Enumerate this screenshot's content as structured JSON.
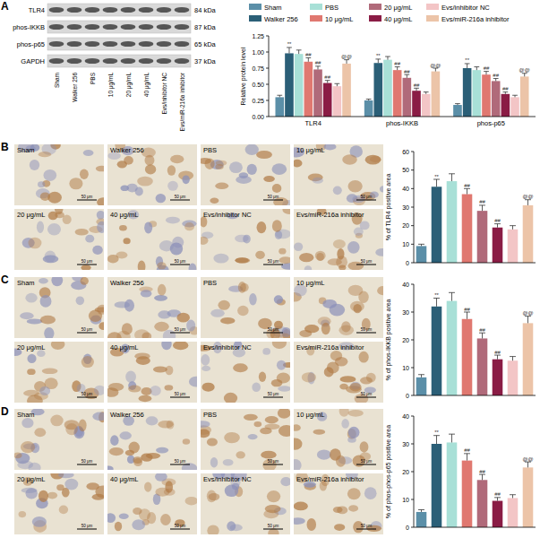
{
  "panel_labels": [
    "A",
    "B",
    "C",
    "D"
  ],
  "blot": {
    "proteins": [
      {
        "name": "TLR4",
        "size": "84 kDa"
      },
      {
        "name": "phos-IKKB",
        "size": "87 kDa"
      },
      {
        "name": "phos-p65",
        "size": "65 kDa"
      },
      {
        "name": "GAPDH",
        "size": "37 kDa"
      }
    ],
    "lanes": [
      "Sham",
      "Walker 256",
      "PBS",
      "10 μg/mL",
      "20 μg/mL",
      "40 μg/mL",
      "Evs/inhibitor NC",
      "Evs/miR-216a inhibitor"
    ]
  },
  "micrographs": {
    "labels": [
      "Sham",
      "Walker 256",
      "PBS",
      "10 μg/mL",
      "20 μg/mL",
      "40 μg/mL",
      "Evs/inhibitor NC",
      "Evs/miR-216a inhibitor"
    ],
    "scale_bar": "50 μm"
  },
  "chart_data": [
    {
      "type": "bar",
      "y_label": "Relative protein level",
      "categories": [
        "TLR4",
        "phos-IKKB",
        "phos-p65"
      ],
      "ylim": [
        0,
        1.25
      ],
      "yticks": [
        {
          "value": 0,
          "label": "0.00"
        },
        0.25,
        {
          "value": 0.5,
          "label": "0.50"
        },
        0.75,
        {
          "value": 1,
          "label": "1.00"
        },
        1.25
      ],
      "legend": "top",
      "grid": false,
      "series": [
        {
          "name": "Sham",
          "color": "#5b8fa8",
          "values": [
            0.3,
            0.25,
            0.18
          ],
          "errors": [
            0.03,
            0.02,
            0.02
          ],
          "annotations": [
            null,
            null,
            null
          ]
        },
        {
          "name": "Walker 256",
          "color": "#2b5f77",
          "values": [
            0.98,
            0.83,
            0.75
          ],
          "errors": [
            0.09,
            0.06,
            0.07
          ],
          "annotations": [
            "**",
            "**",
            "**"
          ]
        },
        {
          "name": "PBS",
          "color": "#a8e0d7",
          "values": [
            0.97,
            0.88,
            0.72
          ],
          "errors": [
            0.06,
            0.05,
            0.05
          ],
          "annotations": [
            null,
            null,
            null
          ]
        },
        {
          "name": "10 μg/mL",
          "color": "#e07870",
          "values": [
            0.85,
            0.72,
            0.65
          ],
          "errors": [
            0.06,
            0.05,
            0.05
          ],
          "annotations": [
            "##",
            "##",
            "##"
          ]
        },
        {
          "name": "20 μg/mL",
          "color": "#b06a7a",
          "values": [
            0.73,
            0.6,
            0.55
          ],
          "errors": [
            0.05,
            0.05,
            0.04
          ],
          "annotations": [
            "##",
            "##",
            "##"
          ]
        },
        {
          "name": "40 μg/mL",
          "color": "#8a1c45",
          "values": [
            0.52,
            0.4,
            0.35
          ],
          "errors": [
            0.04,
            0.04,
            0.03
          ],
          "annotations": [
            "##",
            "##",
            "##"
          ]
        },
        {
          "name": "Evs/inhibitor NC",
          "color": "#f3c5c6",
          "values": [
            0.47,
            0.35,
            0.3
          ],
          "errors": [
            0.04,
            0.03,
            0.03
          ],
          "annotations": [
            null,
            null,
            null
          ]
        },
        {
          "name": "Evs/miR-216a inhibitor",
          "color": "#ecc4a8",
          "values": [
            0.82,
            0.7,
            0.62
          ],
          "errors": [
            0.06,
            0.05,
            0.05
          ],
          "annotations": [
            "@@",
            "@@",
            "@@"
          ]
        }
      ]
    },
    {
      "type": "bar",
      "y_label": "% of TLR4 positive area",
      "categories": [
        null,
        null,
        null,
        null,
        null,
        null,
        null,
        null
      ],
      "values": [
        9,
        41,
        44,
        37,
        28,
        19,
        18,
        31
      ],
      "errors": [
        1,
        4,
        4,
        3,
        3,
        2,
        2,
        3
      ],
      "annotations": [
        null,
        "**",
        null,
        "##",
        "##",
        "##",
        null,
        "@@"
      ],
      "colors": [
        "#5b8fa8",
        "#2b5f77",
        "#a8e0d7",
        "#e07870",
        "#b06a7a",
        "#8a1c45",
        "#f3c5c6",
        "#ecc4a8"
      ],
      "ylim": [
        0,
        60
      ],
      "yticks": [
        0,
        10,
        20,
        30,
        40,
        50,
        60
      ],
      "tick_labels": "y",
      "grid": false
    },
    {
      "type": "bar",
      "y_label": "% of phos-IKKB positive area",
      "categories": [
        null,
        null,
        null,
        null,
        null,
        null,
        null,
        null
      ],
      "values": [
        6.5,
        32,
        34,
        27.5,
        20.5,
        13,
        12.5,
        26
      ],
      "errors": [
        1,
        3,
        3,
        2.5,
        2,
        1.5,
        1.5,
        2.5
      ],
      "annotations": [
        null,
        "**",
        null,
        "##",
        "##",
        "##",
        null,
        "@@"
      ],
      "colors": [
        "#5b8fa8",
        "#2b5f77",
        "#a8e0d7",
        "#e07870",
        "#b06a7a",
        "#8a1c45",
        "#f3c5c6",
        "#ecc4a8"
      ],
      "ylim": [
        0,
        40
      ],
      "yticks": [
        0,
        10,
        20,
        30,
        40
      ],
      "tick_labels": "y",
      "grid": false
    },
    {
      "type": "bar",
      "y_label": "% of phos-phos-p65 positive area",
      "categories": [
        null,
        null,
        null,
        null,
        null,
        null,
        null,
        null
      ],
      "values": [
        5.5,
        30,
        30.5,
        24,
        17,
        9.5,
        10.5,
        21.5
      ],
      "errors": [
        0.8,
        3,
        3,
        2.5,
        2,
        1.2,
        1.2,
        2
      ],
      "annotations": [
        null,
        "**",
        null,
        "##",
        "##",
        "##",
        null,
        "@@"
      ],
      "colors": [
        "#5b8fa8",
        "#2b5f77",
        "#a8e0d7",
        "#e07870",
        "#b06a7a",
        "#8a1c45",
        "#f3c5c6",
        "#ecc4a8"
      ],
      "ylim": [
        0,
        40
      ],
      "yticks": [
        0,
        10,
        20,
        30,
        40
      ],
      "tick_labels": "y",
      "grid": false
    }
  ]
}
